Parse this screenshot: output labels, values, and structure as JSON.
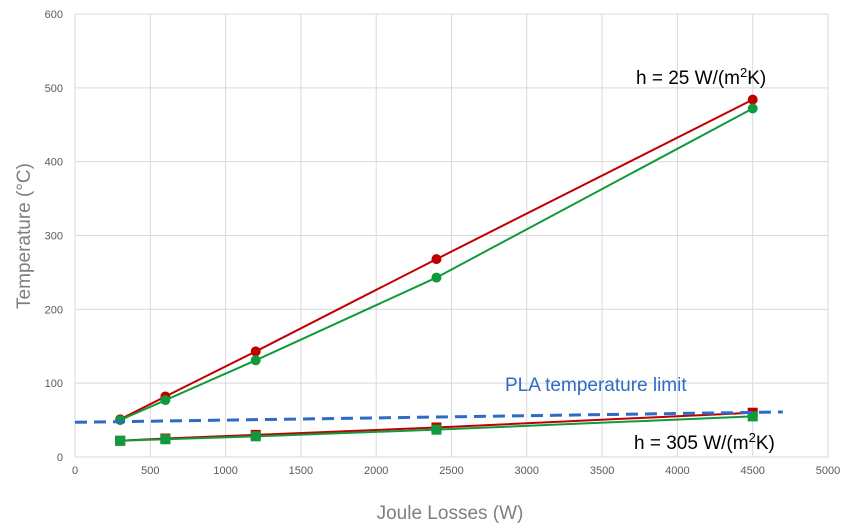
{
  "chart_data": {
    "type": "line",
    "xlabel": "Joule Losses (W)",
    "ylabel": "Temperature (°C)",
    "xlim": [
      0,
      5000
    ],
    "ylim": [
      0,
      600
    ],
    "xticks": [
      0,
      500,
      1000,
      1500,
      2000,
      2500,
      3000,
      3500,
      4000,
      4500,
      5000
    ],
    "yticks": [
      0,
      100,
      200,
      300,
      400,
      500,
      600
    ],
    "grid": true,
    "series": [
      {
        "marker": "circle",
        "color": "#c00000",
        "x": [
          300,
          600,
          1200,
          2400,
          4500
        ],
        "y": [
          51,
          82,
          143,
          268,
          484
        ]
      },
      {
        "marker": "circle",
        "color": "#109a3c",
        "x": [
          300,
          600,
          1200,
          2400,
          4500
        ],
        "y": [
          50,
          77,
          131,
          243,
          472
        ]
      },
      {
        "marker": "square",
        "color": "#c00000",
        "x": [
          300,
          600,
          1200,
          2400,
          4500
        ],
        "y": [
          22,
          25,
          30,
          40,
          60
        ]
      },
      {
        "marker": "square",
        "color": "#109a3c",
        "x": [
          300,
          600,
          1200,
          2400,
          4500
        ],
        "y": [
          22,
          24,
          28,
          37,
          55
        ]
      },
      {
        "marker": "none",
        "color": "#2e6bc6",
        "dashed": true,
        "x": [
          0,
          4700
        ],
        "y": [
          47,
          61
        ]
      }
    ],
    "annotations": {
      "h_high": {
        "prefix": "h = 25 W/(m",
        "sup": "2",
        "suffix": "K)"
      },
      "h_low": {
        "prefix": "h = 305 W/(m",
        "sup": "2",
        "suffix": "K)"
      },
      "pla_limit": "PLA temperature limit",
      "pla_color": "#2e6bc6"
    }
  }
}
